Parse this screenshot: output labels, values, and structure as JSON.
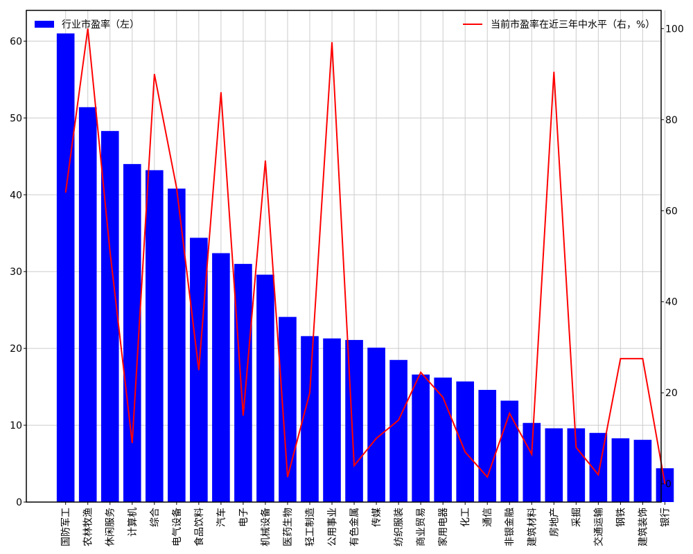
{
  "chart_data": {
    "type": "bar",
    "categories": [
      "国防军工",
      "农林牧渔",
      "休闲服务",
      "计算机",
      "综合",
      "电气设备",
      "食品饮料",
      "汽车",
      "电子",
      "机械设备",
      "医药生物",
      "轻工制造",
      "公用事业",
      "有色金属",
      "传媒",
      "纺织服装",
      "商业贸易",
      "家用电器",
      "化工",
      "通信",
      "非银金融",
      "建筑材料",
      "房地产",
      "采掘",
      "交通运输",
      "钢铁",
      "建筑装饰",
      "银行"
    ],
    "series": [
      {
        "name": "行业市盈率（左）",
        "axis": "left",
        "type": "bar",
        "color": "#0000ff",
        "values": [
          61.0,
          51.4,
          48.3,
          44.0,
          43.2,
          40.8,
          34.4,
          32.4,
          31.0,
          29.6,
          24.1,
          21.6,
          21.3,
          21.1,
          20.1,
          18.5,
          16.6,
          16.2,
          15.7,
          14.6,
          13.2,
          10.3,
          9.6,
          9.6,
          9.0,
          8.3,
          8.1,
          4.4
        ]
      },
      {
        "name": "当前市盈率在近三年中水平（右，%）",
        "axis": "right",
        "type": "line",
        "color": "#ff0000",
        "values": [
          64,
          100,
          51,
          9,
          90,
          65,
          25,
          86,
          15,
          71,
          1.5,
          20,
          97,
          4,
          10,
          14,
          24.5,
          19,
          7,
          1.5,
          15.5,
          6.5,
          90.5,
          8,
          2,
          27.5,
          27.5,
          0
        ]
      }
    ],
    "y_left": {
      "lim": [
        0,
        64
      ],
      "ticks": [
        0,
        10,
        20,
        30,
        40,
        50,
        60
      ]
    },
    "y_right": {
      "lim": [
        -4,
        104
      ],
      "ticks": [
        0,
        20,
        40,
        60,
        80,
        100
      ]
    },
    "grid": true,
    "legend": [
      "top-left",
      "top-right"
    ]
  }
}
